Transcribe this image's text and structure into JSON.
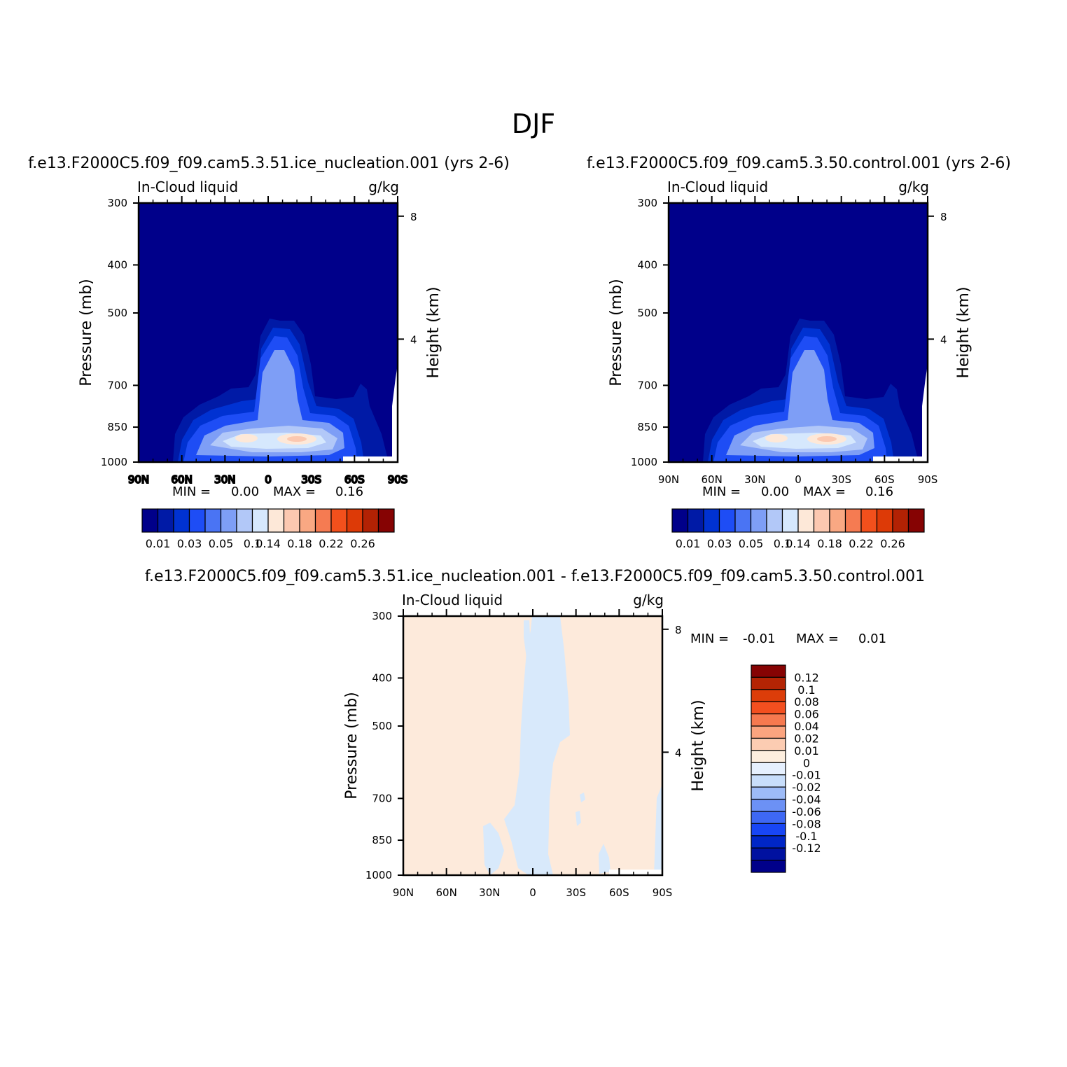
{
  "figure_title": "DJF",
  "colors": {
    "positive_scale": [
      "#00008a",
      "#001aa6",
      "#0032d2",
      "#1e4df5",
      "#4a74f4",
      "#7e9ef6",
      "#b2c8f8",
      "#d6e8fd",
      "#fde8d8",
      "#fcc8b0",
      "#f9a883",
      "#f57b52",
      "#f2501c",
      "#dd3a07",
      "#b22204",
      "#860303"
    ],
    "diff_scale": [
      "#00008a",
      "#0011a0",
      "#0026c7",
      "#1846f5",
      "#3e68f4",
      "#6c91f5",
      "#9dbbf7",
      "#c8defb",
      "#e6f0fe",
      "#fdeede",
      "#fcccb2",
      "#fba47f",
      "#f6794f",
      "#f34f1f",
      "#dc3d09",
      "#b42404",
      "#860303"
    ],
    "background_field": "#00008a",
    "diff_background": "#fdeadb",
    "diff_negative": "#d8e9fb"
  },
  "chart_data": [
    {
      "type": "heatmap",
      "title": "f.e13.F2000C5.f09_f09.cam5.3.51.ice_nucleation.001 (yrs 2-6)",
      "left_label": "In-Cloud liquid",
      "right_label": "g/kg",
      "ylabel": "Pressure (mb)",
      "y2label": "Height (km)",
      "x_ticks": [
        "90N",
        "60N",
        "30N",
        "0",
        "30S",
        "60S",
        "90S"
      ],
      "x_values": [
        90,
        60,
        30,
        0,
        -30,
        -60,
        -90
      ],
      "y_ticks": [
        "300",
        "400",
        "500",
        "700",
        "850",
        "1000"
      ],
      "y_values": [
        300,
        400,
        500,
        700,
        850,
        1000
      ],
      "y2_ticks": [
        "8",
        "4"
      ],
      "y2_values": [
        8,
        4
      ],
      "ylim": [
        1000,
        300
      ],
      "min_label": "MIN =",
      "min_value": "0.00",
      "max_label": "MAX =",
      "max_value": "0.16",
      "levels": [
        "0.01",
        "0.03",
        "0.05",
        "0.1",
        "0.14",
        "0.18",
        "0.22",
        "0.26"
      ]
    },
    {
      "type": "heatmap",
      "title": "f.e13.F2000C5.f09_f09.cam5.3.50.control.001 (yrs 2-6)",
      "left_label": "In-Cloud liquid",
      "right_label": "g/kg",
      "ylabel": "Pressure (mb)",
      "y2label": "Height (km)",
      "x_ticks": [
        "90N",
        "60N",
        "30N",
        "0",
        "30S",
        "60S",
        "90S"
      ],
      "x_values": [
        90,
        60,
        30,
        0,
        -30,
        -60,
        -90
      ],
      "y_ticks": [
        "300",
        "400",
        "500",
        "700",
        "850",
        "1000"
      ],
      "y_values": [
        300,
        400,
        500,
        700,
        850,
        1000
      ],
      "y2_ticks": [
        "8",
        "4"
      ],
      "y2_values": [
        8,
        4
      ],
      "ylim": [
        1000,
        300
      ],
      "min_label": "MIN =",
      "min_value": "0.00",
      "max_label": "MAX =",
      "max_value": "0.16",
      "levels": [
        "0.01",
        "0.03",
        "0.05",
        "0.1",
        "0.14",
        "0.18",
        "0.22",
        "0.26"
      ]
    },
    {
      "type": "heatmap",
      "title": "f.e13.F2000C5.f09_f09.cam5.3.51.ice_nucleation.001 - f.e13.F2000C5.f09_f09.cam5.3.50.control.001",
      "left_label": "In-Cloud liquid",
      "right_label": "g/kg",
      "ylabel": "Pressure (mb)",
      "y2label": "Height (km)",
      "x_ticks": [
        "90N",
        "60N",
        "30N",
        "0",
        "30S",
        "60S",
        "90S"
      ],
      "x_values": [
        90,
        60,
        30,
        0,
        -30,
        -60,
        -90
      ],
      "y_ticks": [
        "300",
        "400",
        "500",
        "700",
        "850",
        "1000"
      ],
      "y_values": [
        300,
        400,
        500,
        700,
        850,
        1000
      ],
      "y2_ticks": [
        "8",
        "4"
      ],
      "y2_values": [
        8,
        4
      ],
      "ylim": [
        1000,
        300
      ],
      "min_label": "MIN =",
      "min_value": "-0.01",
      "max_label": "MAX =",
      "max_value": "0.01",
      "levels": [
        "0.12",
        "0.1",
        "0.08",
        "0.06",
        "0.04",
        "0.02",
        "0.01",
        "0",
        "-0.01",
        "-0.02",
        "-0.04",
        "-0.06",
        "-0.08",
        "-0.1",
        "-0.12"
      ]
    }
  ]
}
